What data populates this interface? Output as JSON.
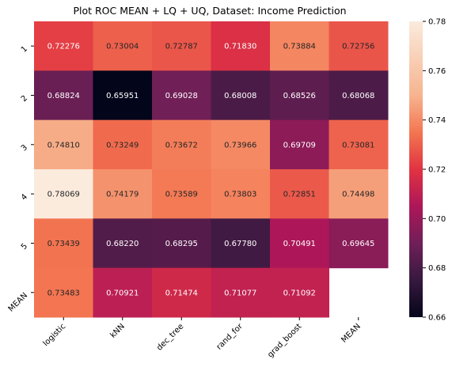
{
  "chart_data": {
    "type": "heatmap",
    "title": "Plot ROC MEAN + LQ + UQ, Dataset: Income Prediction",
    "xlabel": "",
    "ylabel": "",
    "x_categories": [
      "logistic",
      "kNN",
      "dec_tree",
      "rand_for",
      "grad_boost",
      "MEAN"
    ],
    "y_categories": [
      "1",
      "2",
      "3",
      "4",
      "5",
      "MEAN"
    ],
    "values": [
      [
        "0.72276",
        "0.73004",
        "0.72787",
        "0.71830",
        "0.73884",
        "0.72756"
      ],
      [
        "0.68824",
        "0.65951",
        "0.69028",
        "0.68008",
        "0.68526",
        "0.68068"
      ],
      [
        "0.74810",
        "0.73249",
        "0.73672",
        "0.73966",
        "0.69709",
        "0.73081"
      ],
      [
        "0.78069",
        "0.74179",
        "0.73589",
        "0.73803",
        "0.72851",
        "0.74498"
      ],
      [
        "0.73439",
        "0.68220",
        "0.68295",
        "0.67780",
        "0.70491",
        "0.69645"
      ],
      [
        "0.73483",
        "0.70921",
        "0.71474",
        "0.71077",
        "0.71092",
        null
      ]
    ],
    "colorbar": {
      "min": 0.66,
      "max": 0.78,
      "ticks": [
        "0.66",
        "0.68",
        "0.70",
        "0.72",
        "0.74",
        "0.76",
        "0.78"
      ],
      "colormap": "rocket"
    }
  }
}
